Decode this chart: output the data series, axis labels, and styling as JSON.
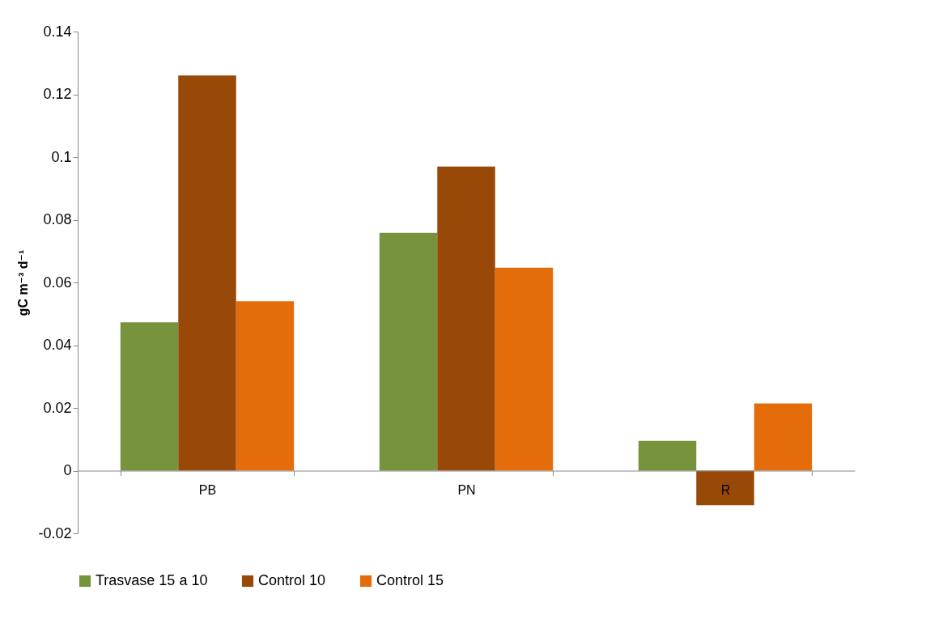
{
  "chart_data": {
    "type": "bar",
    "ylabel": "gC m⁻³ d⁻¹",
    "categories": [
      "PB",
      "PN",
      "R"
    ],
    "series": [
      {
        "name": "Trasvase 15 a 10",
        "color": "#77933c",
        "values": [
          0.0473,
          0.0758,
          0.0095
        ]
      },
      {
        "name": "Control 10",
        "color": "#984807",
        "values": [
          0.126,
          0.097,
          -0.011
        ]
      },
      {
        "name": "Control 15",
        "color": "#e46c0a",
        "values": [
          0.054,
          0.0647,
          0.0214
        ]
      }
    ],
    "ylim": [
      -0.02,
      0.14
    ],
    "yticks": [
      -0.02,
      0,
      0.02,
      0.04,
      0.06,
      0.08,
      0.1,
      0.12,
      0.14
    ],
    "grid": false,
    "legend": "bottom"
  }
}
